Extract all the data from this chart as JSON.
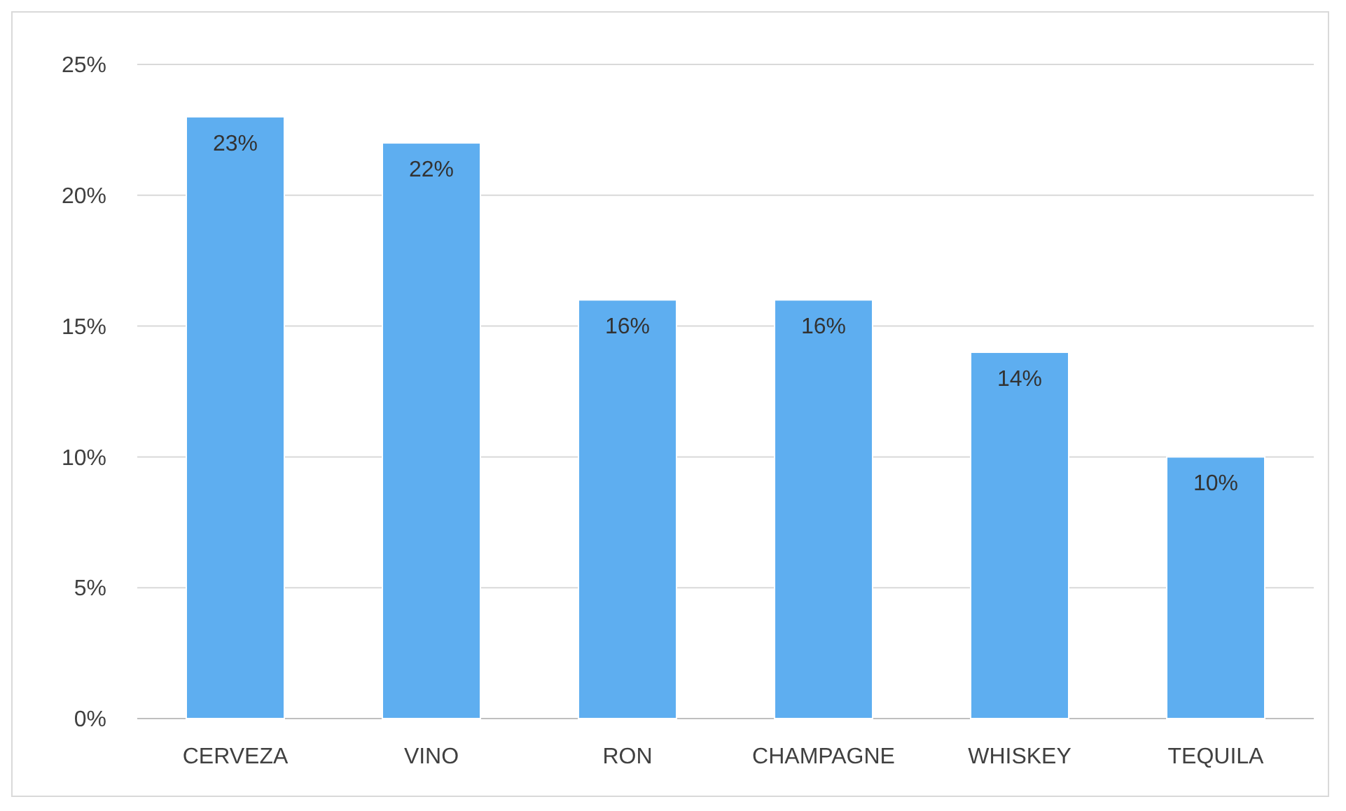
{
  "chart_data": {
    "type": "bar",
    "categories": [
      "CERVEZA",
      "VINO",
      "RON",
      "CHAMPAGNE",
      "WHISKEY",
      "TEQUILA"
    ],
    "values": [
      23,
      22,
      16,
      16,
      14,
      10
    ],
    "value_labels": [
      "23%",
      "22%",
      "16%",
      "16%",
      "14%",
      "10%"
    ],
    "color": "#5eaef0",
    "ylim": [
      0,
      25
    ],
    "yticks": [
      {
        "value": 0,
        "label": "0%"
      },
      {
        "value": 5,
        "label": "5%"
      },
      {
        "value": 10,
        "label": "10%"
      },
      {
        "value": 15,
        "label": "15%"
      },
      {
        "value": 20,
        "label": "20%"
      },
      {
        "value": 25,
        "label": "25%"
      }
    ],
    "grid": "y"
  }
}
